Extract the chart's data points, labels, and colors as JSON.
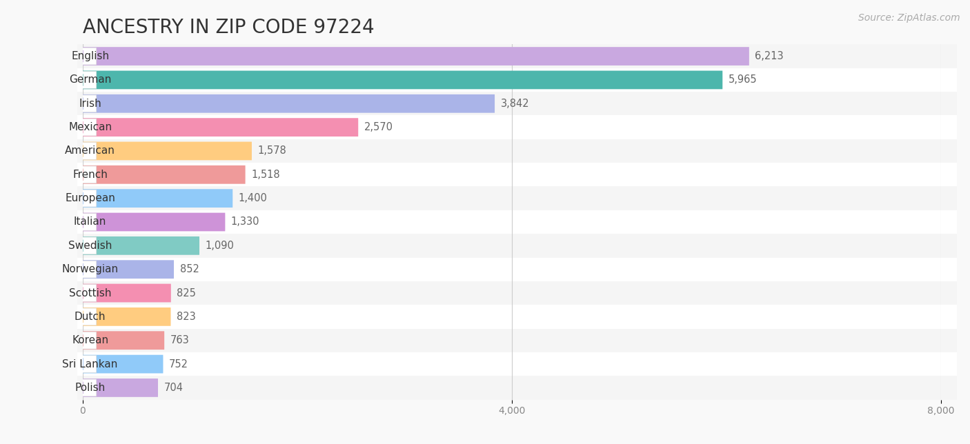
{
  "title": "ANCESTRY IN ZIP CODE 97224",
  "source_text": "Source: ZipAtlas.com",
  "categories": [
    "English",
    "German",
    "Irish",
    "Mexican",
    "American",
    "French",
    "European",
    "Italian",
    "Swedish",
    "Norwegian",
    "Scottish",
    "Dutch",
    "Korean",
    "Sri Lankan",
    "Polish"
  ],
  "values": [
    6213,
    5965,
    3842,
    2570,
    1578,
    1518,
    1400,
    1330,
    1090,
    852,
    825,
    823,
    763,
    752,
    704
  ],
  "bar_colors": [
    "#c9a8e0",
    "#4db6ac",
    "#aab4e8",
    "#f48fb1",
    "#ffcc80",
    "#ef9a9a",
    "#90caf9",
    "#ce93d8",
    "#80cbc4",
    "#aab4e8",
    "#f48fb1",
    "#ffcc80",
    "#ef9a9a",
    "#90caf9",
    "#c9a8e0"
  ],
  "dot_colors": [
    "#9c6abe",
    "#2a9d8f",
    "#7788dd",
    "#e85d9a",
    "#f5a623",
    "#e07070",
    "#5599ee",
    "#a855c0",
    "#30b0a0",
    "#7788dd",
    "#e85d9a",
    "#f5a623",
    "#e07070",
    "#5599ee",
    "#9c6abe"
  ],
  "row_colors": [
    "#f5f5f5",
    "#ffffff"
  ],
  "xlim": [
    0,
    8000
  ],
  "xticks": [
    0,
    4000,
    8000
  ],
  "xticklabels": [
    "0",
    "4,000",
    "8,000"
  ],
  "background_color": "#f9f9f9",
  "title_fontsize": 20,
  "label_fontsize": 11,
  "value_fontsize": 10.5,
  "source_fontsize": 10
}
